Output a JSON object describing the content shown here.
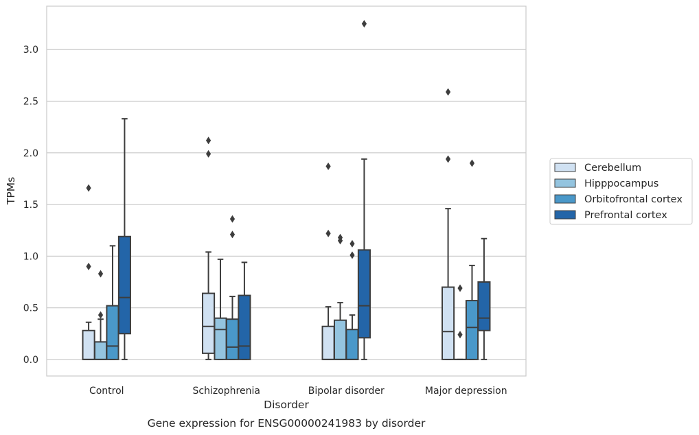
{
  "caption": "Gene expression for ENSG00000241983 by disorder",
  "chart_data": {
    "type": "box",
    "title": "",
    "xlabel": "Disorder",
    "ylabel": "TPMs",
    "ylim": [
      -0.16,
      3.42
    ],
    "yticks": [
      0.0,
      0.5,
      1.0,
      1.5,
      2.0,
      2.5,
      3.0
    ],
    "ytick_labels": [
      "0.0",
      "0.5",
      "1.0",
      "1.5",
      "2.0",
      "2.5",
      "3.0"
    ],
    "grid": "horizontal",
    "legend_position": "right",
    "categories": [
      "Control",
      "Schizophrenia",
      "Bipolar disorder",
      "Major depression"
    ],
    "series": [
      {
        "name": "Cerebellum",
        "color": "#d0e1f2",
        "boxes": [
          {
            "whislo": 0.0,
            "q1": 0.0,
            "med": 0.0,
            "q3": 0.28,
            "whishi": 0.36,
            "fliers": [
              0.9,
              1.66
            ]
          },
          {
            "whislo": 0.0,
            "q1": 0.06,
            "med": 0.32,
            "q3": 0.64,
            "whishi": 1.04,
            "fliers": [
              1.99,
              2.12
            ]
          },
          {
            "whislo": 0.0,
            "q1": 0.0,
            "med": 0.0,
            "q3": 0.32,
            "whishi": 0.51,
            "fliers": [
              1.22,
              1.87
            ]
          },
          {
            "whislo": 0.0,
            "q1": 0.0,
            "med": 0.27,
            "q3": 0.7,
            "whishi": 1.46,
            "fliers": [
              1.94,
              2.59
            ]
          }
        ]
      },
      {
        "name": "Hipppocampus",
        "color": "#94c4df",
        "boxes": [
          {
            "whislo": 0.0,
            "q1": 0.0,
            "med": 0.0,
            "q3": 0.17,
            "whishi": 0.39,
            "fliers": [
              0.43,
              0.83
            ]
          },
          {
            "whislo": 0.0,
            "q1": 0.0,
            "med": 0.29,
            "q3": 0.4,
            "whishi": 0.97,
            "fliers": []
          },
          {
            "whislo": 0.0,
            "q1": 0.0,
            "med": 0.0,
            "q3": 0.38,
            "whishi": 0.55,
            "fliers": [
              1.15,
              1.18
            ]
          },
          {
            "whislo": 0.0,
            "q1": 0.0,
            "med": 0.0,
            "q3": 0.0,
            "whishi": 0.0,
            "fliers": [
              0.24,
              0.69
            ]
          }
        ]
      },
      {
        "name": "Orbitofrontal cortex",
        "color": "#4a98c9",
        "boxes": [
          {
            "whislo": 0.0,
            "q1": 0.0,
            "med": 0.13,
            "q3": 0.52,
            "whishi": 1.1,
            "fliers": []
          },
          {
            "whislo": 0.0,
            "q1": 0.0,
            "med": 0.12,
            "q3": 0.39,
            "whishi": 0.61,
            "fliers": [
              1.21,
              1.36
            ]
          },
          {
            "whislo": 0.0,
            "q1": 0.0,
            "med": 0.0,
            "q3": 0.29,
            "whishi": 0.43,
            "fliers": [
              1.01,
              1.12
            ]
          },
          {
            "whislo": 0.0,
            "q1": 0.0,
            "med": 0.31,
            "q3": 0.57,
            "whishi": 0.91,
            "fliers": [
              1.9
            ]
          }
        ]
      },
      {
        "name": "Prefrontal cortex",
        "color": "#2365a8",
        "boxes": [
          {
            "whislo": 0.0,
            "q1": 0.25,
            "med": 0.6,
            "q3": 1.19,
            "whishi": 2.33,
            "fliers": []
          },
          {
            "whislo": 0.0,
            "q1": 0.0,
            "med": 0.13,
            "q3": 0.62,
            "whishi": 0.94,
            "fliers": []
          },
          {
            "whislo": 0.0,
            "q1": 0.21,
            "med": 0.52,
            "q3": 1.06,
            "whishi": 1.94,
            "fliers": [
              3.25
            ]
          },
          {
            "whislo": 0.0,
            "q1": 0.28,
            "med": 0.4,
            "q3": 0.75,
            "whishi": 1.17,
            "fliers": []
          }
        ]
      }
    ]
  }
}
